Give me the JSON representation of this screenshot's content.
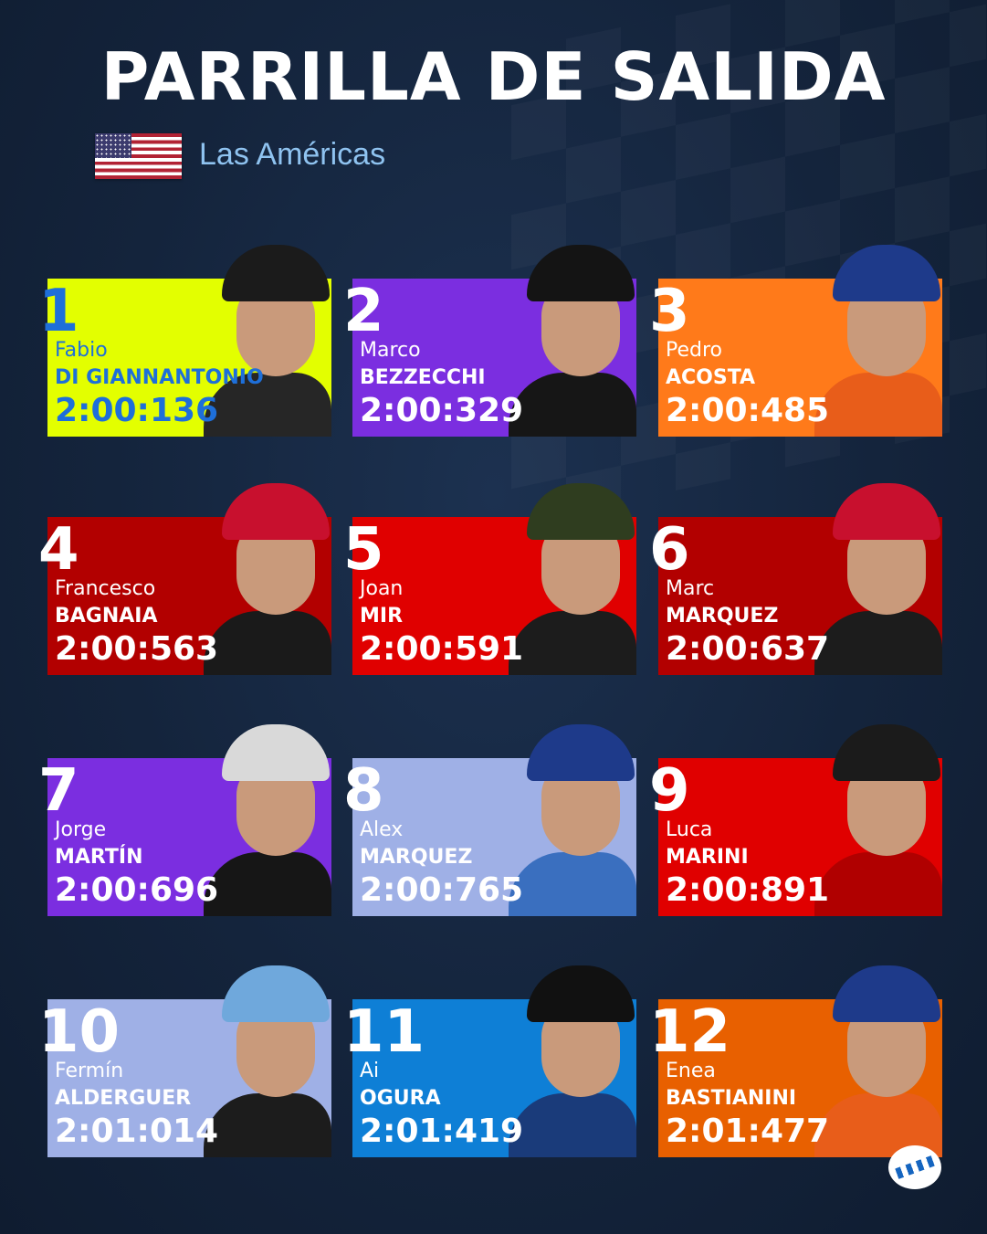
{
  "header": {
    "title": "PARRILLA DE SALIDA",
    "grand_prix": "Las Américas"
  },
  "grid": [
    {
      "pos": "1",
      "first": "Fabio",
      "last": "DI GIANNANTONIO",
      "time": "2:00:136",
      "bg": "#e3ff00",
      "text": "#1e6fd9",
      "helmet": "#1b1b1b",
      "suit": "#262626"
    },
    {
      "pos": "2",
      "first": "Marco",
      "last": "BEZZECCHI",
      "time": "2:00:329",
      "bg": "#7b2ee0",
      "text": "#ffffff",
      "helmet": "#141414",
      "suit": "#161616"
    },
    {
      "pos": "3",
      "first": "Pedro",
      "last": "ACOSTA",
      "time": "2:00:485",
      "bg": "#ff7a1a",
      "text": "#ffffff",
      "helmet": "#1e3a8a",
      "suit": "#e85d1a"
    },
    {
      "pos": "4",
      "first": "Francesco",
      "last": "BAGNAIA",
      "time": "2:00:563",
      "bg": "#b20000",
      "text": "#ffffff",
      "helmet": "#c8102e",
      "suit": "#1a1a1a"
    },
    {
      "pos": "5",
      "first": "Joan",
      "last": "MIR",
      "time": "2:00:591",
      "bg": "#e00000",
      "text": "#ffffff",
      "helmet": "#2f3d1f",
      "suit": "#1c1c1c"
    },
    {
      "pos": "6",
      "first": "Marc",
      "last": "MARQUEZ",
      "time": "2:00:637",
      "bg": "#b20000",
      "text": "#ffffff",
      "helmet": "#c8102e",
      "suit": "#1c1c1c"
    },
    {
      "pos": "7",
      "first": "Jorge",
      "last": "MARTÍN",
      "time": "2:00:696",
      "bg": "#7b2ee0",
      "text": "#ffffff",
      "helmet": "#d9d9d9",
      "suit": "#161616"
    },
    {
      "pos": "8",
      "first": "Alex",
      "last": "MARQUEZ",
      "time": "2:00:765",
      "bg": "#9fb0e6",
      "text": "#ffffff",
      "helmet": "#1e3a8a",
      "suit": "#3a6fbf"
    },
    {
      "pos": "9",
      "first": "Luca",
      "last": "MARINI",
      "time": "2:00:891",
      "bg": "#e00000",
      "text": "#ffffff",
      "helmet": "#1b1b1b",
      "suit": "#b00000"
    },
    {
      "pos": "10",
      "first": "Fermín",
      "last": "ALDERGUER",
      "time": "2:01:014",
      "bg": "#9fb0e6",
      "text": "#ffffff",
      "helmet": "#6fa8dc",
      "suit": "#1c1c1c"
    },
    {
      "pos": "11",
      "first": "Ai",
      "last": "OGURA",
      "time": "2:01:419",
      "bg": "#0e7fd6",
      "text": "#ffffff",
      "helmet": "#111111",
      "suit": "#1a3b7a"
    },
    {
      "pos": "12",
      "first": "Enea",
      "last": "BASTIANINI",
      "time": "2:01:477",
      "bg": "#e86000",
      "text": "#ffffff",
      "helmet": "#1e3a8a",
      "suit": "#e85d1a"
    }
  ]
}
